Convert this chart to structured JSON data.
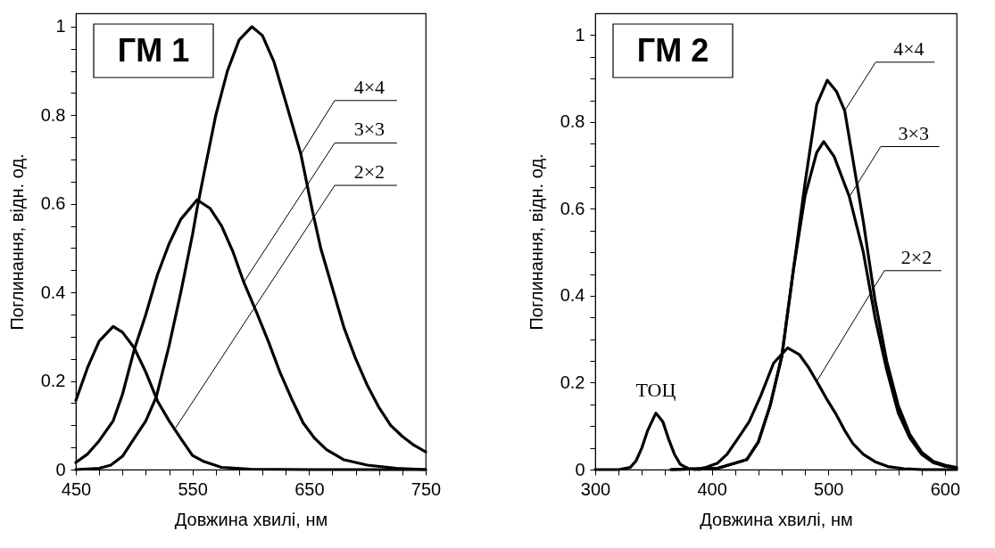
{
  "chart_data": [
    {
      "type": "line",
      "title": "ГМ 1",
      "xlabel": "Довжина хвилі, нм",
      "ylabel": "Поглинання, відн. од.",
      "xlim": [
        450,
        750
      ],
      "ylim": [
        0,
        1.03
      ],
      "xticks": [
        450,
        {
          "value": 470,
          "label": null
        },
        {
          "value": 490,
          "label": null
        },
        {
          "value": 510,
          "label": null
        },
        {
          "value": 530,
          "label": null
        },
        550,
        {
          "value": 570,
          "label": null
        },
        {
          "value": 590,
          "label": null
        },
        {
          "value": 610,
          "label": null
        },
        {
          "value": 630,
          "label": null
        },
        650,
        {
          "value": 670,
          "label": null
        },
        {
          "value": 690,
          "label": null
        },
        {
          "value": 710,
          "label": null
        },
        {
          "value": 730,
          "label": null
        },
        750
      ],
      "yticks": [
        0,
        {
          "value": 0.05,
          "label": null
        },
        {
          "value": 0.1,
          "label": null
        },
        {
          "value": 0.15,
          "label": null
        },
        0.2,
        {
          "value": 0.25,
          "label": null
        },
        {
          "value": 0.3,
          "label": null
        },
        {
          "value": 0.35,
          "label": null
        },
        0.4,
        {
          "value": 0.45,
          "label": null
        },
        {
          "value": 0.5,
          "label": null
        },
        {
          "value": 0.55,
          "label": null
        },
        0.6,
        {
          "value": 0.65,
          "label": null
        },
        {
          "value": 0.7,
          "label": null
        },
        {
          "value": 0.75,
          "label": null
        },
        0.8,
        {
          "value": 0.85,
          "label": null
        },
        {
          "value": 0.9,
          "label": null
        },
        {
          "value": 0.95,
          "label": null
        },
        1
      ],
      "grid": false,
      "line_style": "solid",
      "series": [
        {
          "color": "#000000",
          "x": [
            450,
            460,
            470,
            482,
            490,
            500,
            510,
            520,
            530,
            540,
            550,
            560,
            575,
            600,
            650,
            750
          ],
          "values": [
            0.156,
            0.23,
            0.29,
            0.323,
            0.31,
            0.275,
            0.22,
            0.155,
            0.11,
            0.07,
            0.032,
            0.018,
            0.005,
            0.001,
            0,
            0
          ]
        },
        {
          "color": "#000000",
          "x": [
            450,
            460,
            470,
            482,
            490,
            500,
            510,
            520,
            530,
            540,
            554,
            565,
            575,
            585,
            594,
            605,
            615,
            625,
            635,
            645,
            655,
            665,
            680,
            700,
            725,
            750
          ],
          "values": [
            0.016,
            0.035,
            0.065,
            0.11,
            0.17,
            0.27,
            0.35,
            0.44,
            0.51,
            0.565,
            0.609,
            0.59,
            0.55,
            0.49,
            0.423,
            0.355,
            0.29,
            0.22,
            0.16,
            0.105,
            0.07,
            0.045,
            0.022,
            0.01,
            0.003,
            0
          ]
        },
        {
          "color": "#000000",
          "x": [
            450,
            470,
            480,
            490,
            500,
            510,
            519,
            530,
            540,
            550,
            554,
            560,
            570,
            580,
            590,
            601,
            610,
            620,
            630,
            643,
            653,
            660,
            670,
            680,
            690,
            700,
            710,
            720,
            730,
            740,
            750
          ],
          "values": [
            0,
            0.003,
            0.01,
            0.03,
            0.07,
            0.11,
            0.164,
            0.28,
            0.4,
            0.53,
            0.59,
            0.67,
            0.8,
            0.9,
            0.97,
            1,
            0.98,
            0.92,
            0.83,
            0.712,
            0.583,
            0.5,
            0.41,
            0.32,
            0.25,
            0.19,
            0.14,
            0.1,
            0.075,
            0.055,
            0.04
          ]
        }
      ],
      "annotations": [
        {
          "text": "4×4",
          "x": 643,
          "y": 0.712
        },
        {
          "text": "3×3",
          "x": 594,
          "y": 0.423
        },
        {
          "text": "2×2",
          "x": 535,
          "y": 0.092
        }
      ]
    },
    {
      "type": "line",
      "title": "ГМ 2",
      "xlabel": "Довжина хвилі, нм",
      "ylabel": "Поглинання, відн. од.",
      "xlim": [
        300,
        610
      ],
      "ylim": [
        0,
        1.05
      ],
      "xticks": [
        300,
        {
          "value": 320,
          "label": null
        },
        {
          "value": 340,
          "label": null
        },
        {
          "value": 360,
          "label": null
        },
        {
          "value": 380,
          "label": null
        },
        400,
        {
          "value": 420,
          "label": null
        },
        {
          "value": 440,
          "label": null
        },
        {
          "value": 460,
          "label": null
        },
        {
          "value": 480,
          "label": null
        },
        500,
        {
          "value": 520,
          "label": null
        },
        {
          "value": 540,
          "label": null
        },
        {
          "value": 560,
          "label": null
        },
        {
          "value": 580,
          "label": null
        },
        600
      ],
      "yticks": [
        0,
        {
          "value": 0.05,
          "label": null
        },
        {
          "value": 0.1,
          "label": null
        },
        {
          "value": 0.15,
          "label": null
        },
        0.2,
        {
          "value": 0.25,
          "label": null
        },
        {
          "value": 0.3,
          "label": null
        },
        {
          "value": 0.35,
          "label": null
        },
        0.4,
        {
          "value": 0.45,
          "label": null
        },
        {
          "value": 0.5,
          "label": null
        },
        {
          "value": 0.55,
          "label": null
        },
        0.6,
        {
          "value": 0.65,
          "label": null
        },
        {
          "value": 0.7,
          "label": null
        },
        {
          "value": 0.75,
          "label": null
        },
        0.8,
        {
          "value": 0.85,
          "label": null
        },
        {
          "value": 0.9,
          "label": null
        },
        {
          "value": 0.95,
          "label": null
        },
        1
      ],
      "grid": false,
      "line_style": "solid",
      "series": [
        {
          "name": "ТОЦ",
          "color": "#000000",
          "x": [
            300,
            320,
            330,
            335,
            340,
            345,
            352,
            358,
            363,
            368,
            373,
            380,
            390
          ],
          "values": [
            0,
            0,
            0.005,
            0.02,
            0.05,
            0.09,
            0.13,
            0.11,
            0.07,
            0.035,
            0.012,
            0.002,
            0
          ]
        },
        {
          "color": "#000000",
          "x": [
            385,
            395,
            405,
            413,
            422,
            432,
            442,
            453,
            465,
            475,
            483,
            490,
            498,
            506,
            514,
            521,
            530,
            540,
            551,
            565,
            580,
            610
          ],
          "values": [
            0,
            0.005,
            0.015,
            0.035,
            0.07,
            0.11,
            0.17,
            0.245,
            0.28,
            0.265,
            0.235,
            0.203,
            0.165,
            0.13,
            0.09,
            0.06,
            0.035,
            0.018,
            0.007,
            0.002,
            0,
            0
          ]
        },
        {
          "color": "#000000",
          "x": [
            365,
            405,
            420,
            430,
            440,
            450,
            460,
            470,
            480,
            490,
            496,
            505,
            518,
            530,
            540,
            550,
            560,
            570,
            580,
            590,
            600,
            610
          ],
          "values": [
            0,
            0.003,
            0.015,
            0.023,
            0.064,
            0.147,
            0.26,
            0.46,
            0.63,
            0.73,
            0.755,
            0.72,
            0.628,
            0.5,
            0.35,
            0.23,
            0.13,
            0.072,
            0.035,
            0.016,
            0.008,
            0.004
          ]
        },
        {
          "color": "#000000",
          "x": [
            365,
            405,
            420,
            430,
            440,
            450,
            460,
            470,
            480,
            490,
            499,
            507,
            514,
            520,
            530,
            540,
            550,
            560,
            570,
            580,
            590,
            600,
            610
          ],
          "values": [
            0,
            0.003,
            0.015,
            0.023,
            0.064,
            0.147,
            0.26,
            0.46,
            0.66,
            0.84,
            0.896,
            0.87,
            0.826,
            0.73,
            0.57,
            0.39,
            0.25,
            0.147,
            0.08,
            0.04,
            0.019,
            0.01,
            0.005
          ]
        }
      ],
      "annotations": [
        {
          "text": "4×4",
          "x": 514,
          "y": 0.826
        },
        {
          "text": "3×3",
          "x": 518,
          "y": 0.628
        },
        {
          "text": "2×2",
          "x": 490,
          "y": 0.203
        }
      ]
    }
  ]
}
